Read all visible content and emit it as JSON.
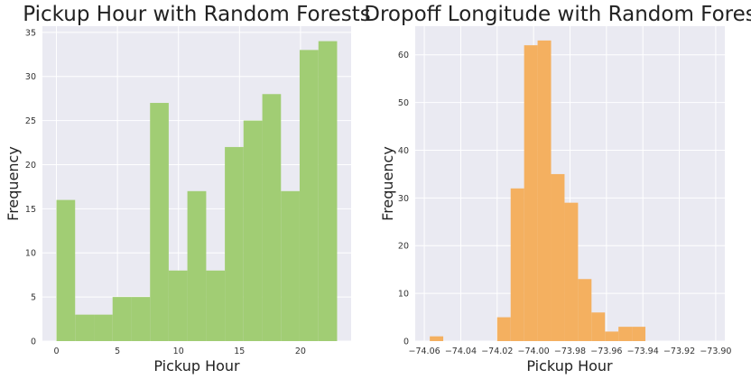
{
  "chart_data": [
    {
      "type": "bar",
      "title": "Pickup Hour with Random Forests",
      "xlabel": "Pickup Hour",
      "ylabel": "Frequency",
      "color": "#a1cd74",
      "xlim": [
        -1.15,
        24.15
      ],
      "ylim": [
        0,
        35.7
      ],
      "xticks": [
        0,
        5,
        10,
        15,
        20
      ],
      "xtick_labels": [
        "0",
        "5",
        "10",
        "15",
        "20"
      ],
      "yticks": [
        0,
        5,
        10,
        15,
        20,
        25,
        30,
        35
      ],
      "ytick_labels": [
        "0",
        "5",
        "10",
        "15",
        "20",
        "25",
        "30",
        "35"
      ],
      "grid": true,
      "bins": [
        {
          "x0": 0.0,
          "x1": 1.53,
          "value": 16
        },
        {
          "x0": 1.53,
          "x1": 3.07,
          "value": 3
        },
        {
          "x0": 3.07,
          "x1": 4.6,
          "value": 3
        },
        {
          "x0": 4.6,
          "x1": 6.13,
          "value": 5
        },
        {
          "x0": 6.13,
          "x1": 7.67,
          "value": 5
        },
        {
          "x0": 7.67,
          "x1": 9.2,
          "value": 27
        },
        {
          "x0": 9.2,
          "x1": 10.73,
          "value": 8
        },
        {
          "x0": 10.73,
          "x1": 12.27,
          "value": 17
        },
        {
          "x0": 12.27,
          "x1": 13.8,
          "value": 8
        },
        {
          "x0": 13.8,
          "x1": 15.33,
          "value": 22
        },
        {
          "x0": 15.33,
          "x1": 16.87,
          "value": 25
        },
        {
          "x0": 16.87,
          "x1": 18.4,
          "value": 28
        },
        {
          "x0": 18.4,
          "x1": 19.93,
          "value": 17
        },
        {
          "x0": 19.93,
          "x1": 21.47,
          "value": 33
        },
        {
          "x0": 21.47,
          "x1": 23.0,
          "value": 34
        }
      ]
    },
    {
      "type": "bar",
      "title": "Dropoff Longitude with Random Forests",
      "xlabel": "Pickup Hour",
      "ylabel": "Frequency",
      "color": "#f4b060",
      "xlim": [
        -74.065,
        -73.895
      ],
      "ylim": [
        0,
        66
      ],
      "xticks": [
        -74.06,
        -74.04,
        -74.02,
        -74.0,
        -73.98,
        -73.96,
        -73.94,
        -73.92,
        -73.9
      ],
      "xtick_labels": [
        "−74.06",
        "−74.04",
        "−74.02",
        "−74.00",
        "−73.98",
        "−73.96",
        "−73.94",
        "−73.92",
        "−73.90"
      ],
      "yticks": [
        0,
        10,
        20,
        30,
        40,
        50,
        60
      ],
      "ytick_labels": [
        "0",
        "10",
        "20",
        "30",
        "40",
        "50",
        "60"
      ],
      "grid": true,
      "bins": [
        {
          "x0": -74.057,
          "x1": -74.0496,
          "value": 1
        },
        {
          "x0": -74.0496,
          "x1": -74.0422,
          "value": 0
        },
        {
          "x0": -74.0422,
          "x1": -74.0348,
          "value": 0
        },
        {
          "x0": -74.0348,
          "x1": -74.0274,
          "value": 0
        },
        {
          "x0": -74.0274,
          "x1": -74.02,
          "value": 0
        },
        {
          "x0": -74.02,
          "x1": -74.0126,
          "value": 5
        },
        {
          "x0": -74.0126,
          "x1": -74.0052,
          "value": 32
        },
        {
          "x0": -74.0052,
          "x1": -73.9978,
          "value": 62
        },
        {
          "x0": -73.9978,
          "x1": -73.9904,
          "value": 63
        },
        {
          "x0": -73.9904,
          "x1": -73.983,
          "value": 35
        },
        {
          "x0": -73.983,
          "x1": -73.9756,
          "value": 29
        },
        {
          "x0": -73.9756,
          "x1": -73.9682,
          "value": 13
        },
        {
          "x0": -73.9682,
          "x1": -73.9608,
          "value": 6
        },
        {
          "x0": -73.9608,
          "x1": -73.9534,
          "value": 2
        },
        {
          "x0": -73.9534,
          "x1": -73.946,
          "value": 3
        },
        {
          "x0": -73.946,
          "x1": -73.9386,
          "value": 3
        }
      ]
    }
  ]
}
